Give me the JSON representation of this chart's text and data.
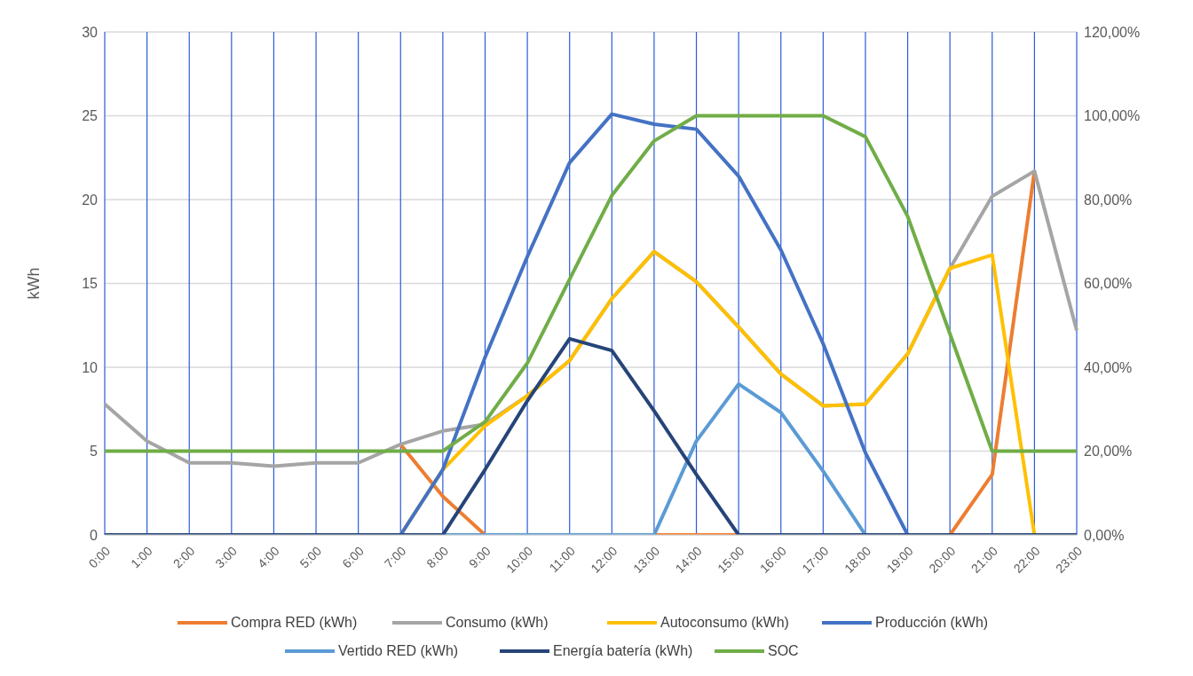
{
  "chart_data": {
    "type": "line",
    "ylabel": "kWh",
    "categories": [
      "0:00",
      "1:00",
      "2:00",
      "3:00",
      "4:00",
      "5:00",
      "6:00",
      "7:00",
      "8:00",
      "9:00",
      "10:00",
      "11:00",
      "12:00",
      "13:00",
      "14:00",
      "15:00",
      "16:00",
      "17:00",
      "18:00",
      "19:00",
      "20:00",
      "21:00",
      "22:00",
      "23:00"
    ],
    "series": [
      {
        "name": "Compra RED (kWh)",
        "color": "#ed7d31",
        "values": [
          null,
          null,
          null,
          null,
          null,
          null,
          null,
          5.4,
          2.3,
          0,
          null,
          null,
          null,
          0,
          0,
          0,
          null,
          null,
          null,
          null,
          0,
          3.6,
          21.7,
          null
        ]
      },
      {
        "name": "Consumo (kWh)",
        "color": "#a5a5a5",
        "values": [
          7.8,
          5.6,
          4.3,
          4.3,
          4.1,
          4.3,
          4.3,
          5.4,
          6.2,
          6.6,
          8.3,
          10.4,
          14.1,
          16.9,
          15.1,
          12.4,
          9.6,
          7.7,
          7.8,
          10.8,
          15.9,
          20.2,
          21.7,
          12.2
        ]
      },
      {
        "name": "Autoconsumo (kWh)",
        "color": "#ffc000",
        "values": [
          null,
          null,
          null,
          null,
          null,
          null,
          null,
          0,
          3.9,
          6.5,
          8.3,
          10.4,
          14.1,
          16.9,
          15.1,
          12.4,
          9.6,
          7.7,
          7.8,
          10.8,
          15.9,
          16.7,
          0,
          0
        ]
      },
      {
        "name": "Producción (kWh)",
        "color": "#4472c4",
        "values": [
          0,
          0,
          0,
          0,
          0,
          0,
          0,
          0,
          3.9,
          10.6,
          16.6,
          22.2,
          25.1,
          24.5,
          24.2,
          21.4,
          17.0,
          11.4,
          4.9,
          0,
          0,
          0,
          0,
          0
        ]
      },
      {
        "name": "Vertido RED (kWh)",
        "color": "#5b9bd5",
        "values": [
          0,
          0,
          0,
          0,
          0,
          0,
          0,
          0,
          0,
          0,
          0,
          0,
          0,
          0,
          5.6,
          9.0,
          7.3,
          3.8,
          0,
          0,
          0,
          0,
          0,
          0
        ]
      },
      {
        "name": "Energía batería (kWh)",
        "color": "#264478",
        "values": [
          0,
          0,
          0,
          0,
          0,
          0,
          0,
          0,
          0,
          3.9,
          8.0,
          11.7,
          11.0,
          7.4,
          3.6,
          0,
          0,
          0,
          0,
          0,
          0,
          0,
          0,
          0
        ]
      },
      {
        "name": "SOC",
        "color": "#70ad47",
        "axis": "y2",
        "values": [
          20,
          20,
          20,
          20,
          20,
          20,
          20,
          20,
          20,
          27,
          41,
          61,
          81,
          94,
          100,
          100,
          100,
          100,
          95,
          76,
          48,
          20,
          20,
          20
        ]
      }
    ],
    "ylim": [
      0,
      30
    ],
    "yticks": [
      0,
      5,
      10,
      15,
      20,
      25,
      30
    ],
    "y2lim": [
      0,
      120
    ],
    "y2ticks": [
      {
        "value": 0,
        "label": "0,00%"
      },
      {
        "value": 20,
        "label": "20,00%"
      },
      {
        "value": 40,
        "label": "40,00%"
      },
      {
        "value": 60,
        "label": "60,00%"
      },
      {
        "value": 80,
        "label": "80,00%"
      },
      {
        "value": 100,
        "label": "100,00%"
      },
      {
        "value": 120,
        "label": "120,00%"
      }
    ],
    "grid": true,
    "legend": "bottom",
    "marker": "none",
    "line_style": "solid"
  }
}
